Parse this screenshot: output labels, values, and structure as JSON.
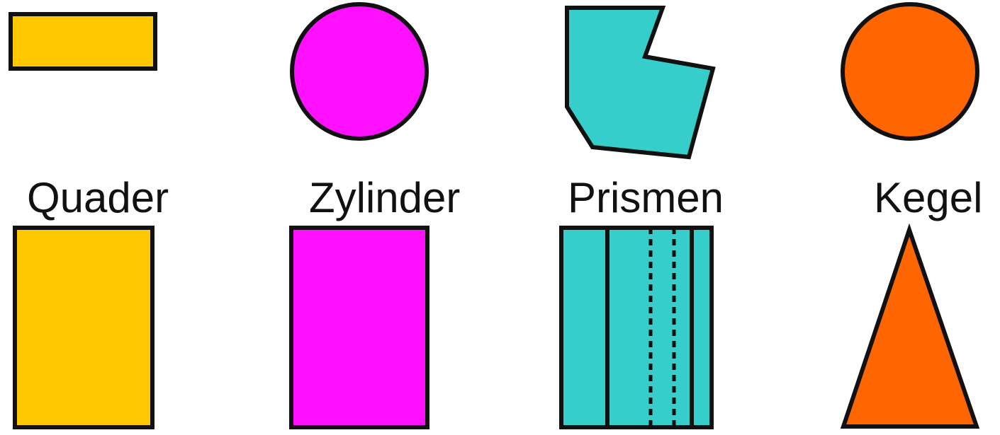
{
  "colors": {
    "outline": "#111111",
    "quader": "#FFC800",
    "zylinder": "#FF10FF",
    "prismen": "#36CECA",
    "kegel": "#FF6600"
  },
  "labels": {
    "quader": "Quader",
    "zylinder": "Zylinder",
    "prismen": "Prismen",
    "kegel": "Kegel"
  }
}
